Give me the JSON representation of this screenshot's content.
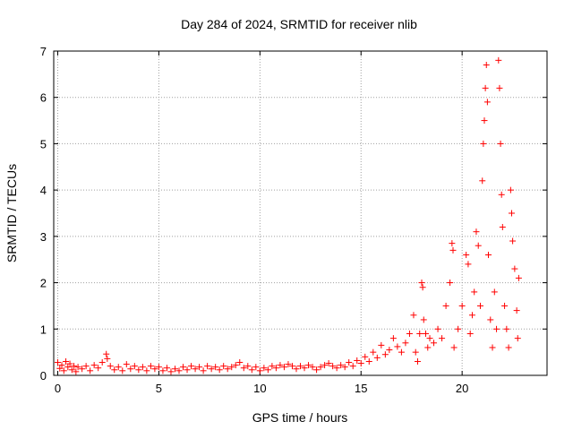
{
  "chart_data": {
    "type": "scatter",
    "title": "Day 284 of 2024, SRMTID for receiver nlib",
    "xlabel": "GPS time / hours",
    "ylabel": "SRMTID / TECUs",
    "xlim": [
      -0.2,
      24.2
    ],
    "ylim": [
      0,
      7
    ],
    "xticks": [
      0,
      5,
      10,
      15,
      20
    ],
    "yticks": [
      0,
      1,
      2,
      3,
      4,
      5,
      6,
      7
    ],
    "grid": true,
    "marker": "plus",
    "color": "#ff0000",
    "series": [
      {
        "name": "SRMTID",
        "points": [
          [
            0.0,
            0.28
          ],
          [
            0.1,
            0.15
          ],
          [
            0.2,
            0.22
          ],
          [
            0.3,
            0.1
          ],
          [
            0.4,
            0.3
          ],
          [
            0.5,
            0.18
          ],
          [
            0.6,
            0.25
          ],
          [
            0.7,
            0.12
          ],
          [
            0.8,
            0.2
          ],
          [
            0.9,
            0.08
          ],
          [
            1.0,
            0.18
          ],
          [
            1.2,
            0.14
          ],
          [
            1.4,
            0.2
          ],
          [
            1.6,
            0.1
          ],
          [
            1.8,
            0.22
          ],
          [
            2.0,
            0.16
          ],
          [
            2.2,
            0.28
          ],
          [
            2.4,
            0.46
          ],
          [
            2.45,
            0.36
          ],
          [
            2.6,
            0.2
          ],
          [
            2.8,
            0.12
          ],
          [
            3.0,
            0.18
          ],
          [
            3.2,
            0.1
          ],
          [
            3.4,
            0.24
          ],
          [
            3.6,
            0.14
          ],
          [
            3.8,
            0.2
          ],
          [
            4.0,
            0.12
          ],
          [
            4.2,
            0.18
          ],
          [
            4.4,
            0.1
          ],
          [
            4.6,
            0.2
          ],
          [
            4.8,
            0.14
          ],
          [
            5.0,
            0.18
          ],
          [
            5.2,
            0.1
          ],
          [
            5.4,
            0.16
          ],
          [
            5.6,
            0.08
          ],
          [
            5.8,
            0.14
          ],
          [
            6.0,
            0.1
          ],
          [
            6.2,
            0.18
          ],
          [
            6.4,
            0.12
          ],
          [
            6.6,
            0.2
          ],
          [
            6.8,
            0.14
          ],
          [
            7.0,
            0.18
          ],
          [
            7.2,
            0.1
          ],
          [
            7.4,
            0.2
          ],
          [
            7.6,
            0.14
          ],
          [
            7.8,
            0.18
          ],
          [
            8.0,
            0.12
          ],
          [
            8.2,
            0.2
          ],
          [
            8.4,
            0.14
          ],
          [
            8.6,
            0.18
          ],
          [
            8.8,
            0.22
          ],
          [
            9.0,
            0.28
          ],
          [
            9.2,
            0.16
          ],
          [
            9.4,
            0.2
          ],
          [
            9.6,
            0.12
          ],
          [
            9.8,
            0.18
          ],
          [
            10.0,
            0.1
          ],
          [
            10.2,
            0.16
          ],
          [
            10.4,
            0.12
          ],
          [
            10.6,
            0.2
          ],
          [
            10.8,
            0.16
          ],
          [
            11.0,
            0.22
          ],
          [
            11.2,
            0.18
          ],
          [
            11.4,
            0.24
          ],
          [
            11.6,
            0.2
          ],
          [
            11.8,
            0.14
          ],
          [
            12.0,
            0.2
          ],
          [
            12.2,
            0.16
          ],
          [
            12.4,
            0.22
          ],
          [
            12.6,
            0.18
          ],
          [
            12.8,
            0.12
          ],
          [
            13.0,
            0.18
          ],
          [
            13.2,
            0.22
          ],
          [
            13.4,
            0.26
          ],
          [
            13.6,
            0.2
          ],
          [
            13.8,
            0.16
          ],
          [
            14.0,
            0.22
          ],
          [
            14.2,
            0.18
          ],
          [
            14.4,
            0.28
          ],
          [
            14.6,
            0.2
          ],
          [
            14.8,
            0.32
          ],
          [
            15.0,
            0.26
          ],
          [
            15.2,
            0.4
          ],
          [
            15.4,
            0.3
          ],
          [
            15.6,
            0.5
          ],
          [
            15.8,
            0.38
          ],
          [
            16.0,
            0.65
          ],
          [
            16.2,
            0.45
          ],
          [
            16.4,
            0.55
          ],
          [
            16.6,
            0.8
          ],
          [
            16.8,
            0.62
          ],
          [
            17.0,
            0.5
          ],
          [
            17.2,
            0.7
          ],
          [
            17.4,
            0.9
          ],
          [
            17.6,
            1.3
          ],
          [
            17.7,
            0.5
          ],
          [
            17.8,
            0.3
          ],
          [
            17.9,
            0.9
          ],
          [
            18.0,
            2.0
          ],
          [
            18.05,
            1.9
          ],
          [
            18.1,
            1.2
          ],
          [
            18.2,
            0.9
          ],
          [
            18.3,
            0.6
          ],
          [
            18.4,
            0.8
          ],
          [
            18.6,
            0.7
          ],
          [
            18.8,
            1.0
          ],
          [
            19.0,
            0.8
          ],
          [
            19.2,
            1.5
          ],
          [
            19.4,
            2.0
          ],
          [
            19.5,
            2.85
          ],
          [
            19.55,
            2.7
          ],
          [
            19.6,
            0.6
          ],
          [
            19.8,
            1.0
          ],
          [
            20.0,
            1.5
          ],
          [
            20.2,
            2.6
          ],
          [
            20.3,
            2.4
          ],
          [
            20.4,
            0.9
          ],
          [
            20.5,
            1.3
          ],
          [
            20.6,
            1.8
          ],
          [
            20.7,
            3.1
          ],
          [
            20.8,
            2.8
          ],
          [
            20.9,
            1.5
          ],
          [
            21.0,
            4.2
          ],
          [
            21.05,
            5.0
          ],
          [
            21.1,
            5.5
          ],
          [
            21.15,
            6.2
          ],
          [
            21.2,
            6.7
          ],
          [
            21.25,
            5.9
          ],
          [
            21.3,
            2.6
          ],
          [
            21.4,
            1.2
          ],
          [
            21.5,
            0.6
          ],
          [
            21.6,
            1.8
          ],
          [
            21.7,
            1.0
          ],
          [
            21.8,
            6.8
          ],
          [
            21.85,
            6.2
          ],
          [
            21.9,
            5.0
          ],
          [
            21.95,
            3.9
          ],
          [
            22.0,
            3.2
          ],
          [
            22.1,
            1.5
          ],
          [
            22.2,
            1.0
          ],
          [
            22.3,
            0.6
          ],
          [
            22.4,
            4.0
          ],
          [
            22.45,
            3.5
          ],
          [
            22.5,
            2.9
          ],
          [
            22.6,
            2.3
          ],
          [
            22.7,
            1.4
          ],
          [
            22.75,
            0.8
          ],
          [
            22.8,
            2.1
          ]
        ]
      }
    ]
  }
}
